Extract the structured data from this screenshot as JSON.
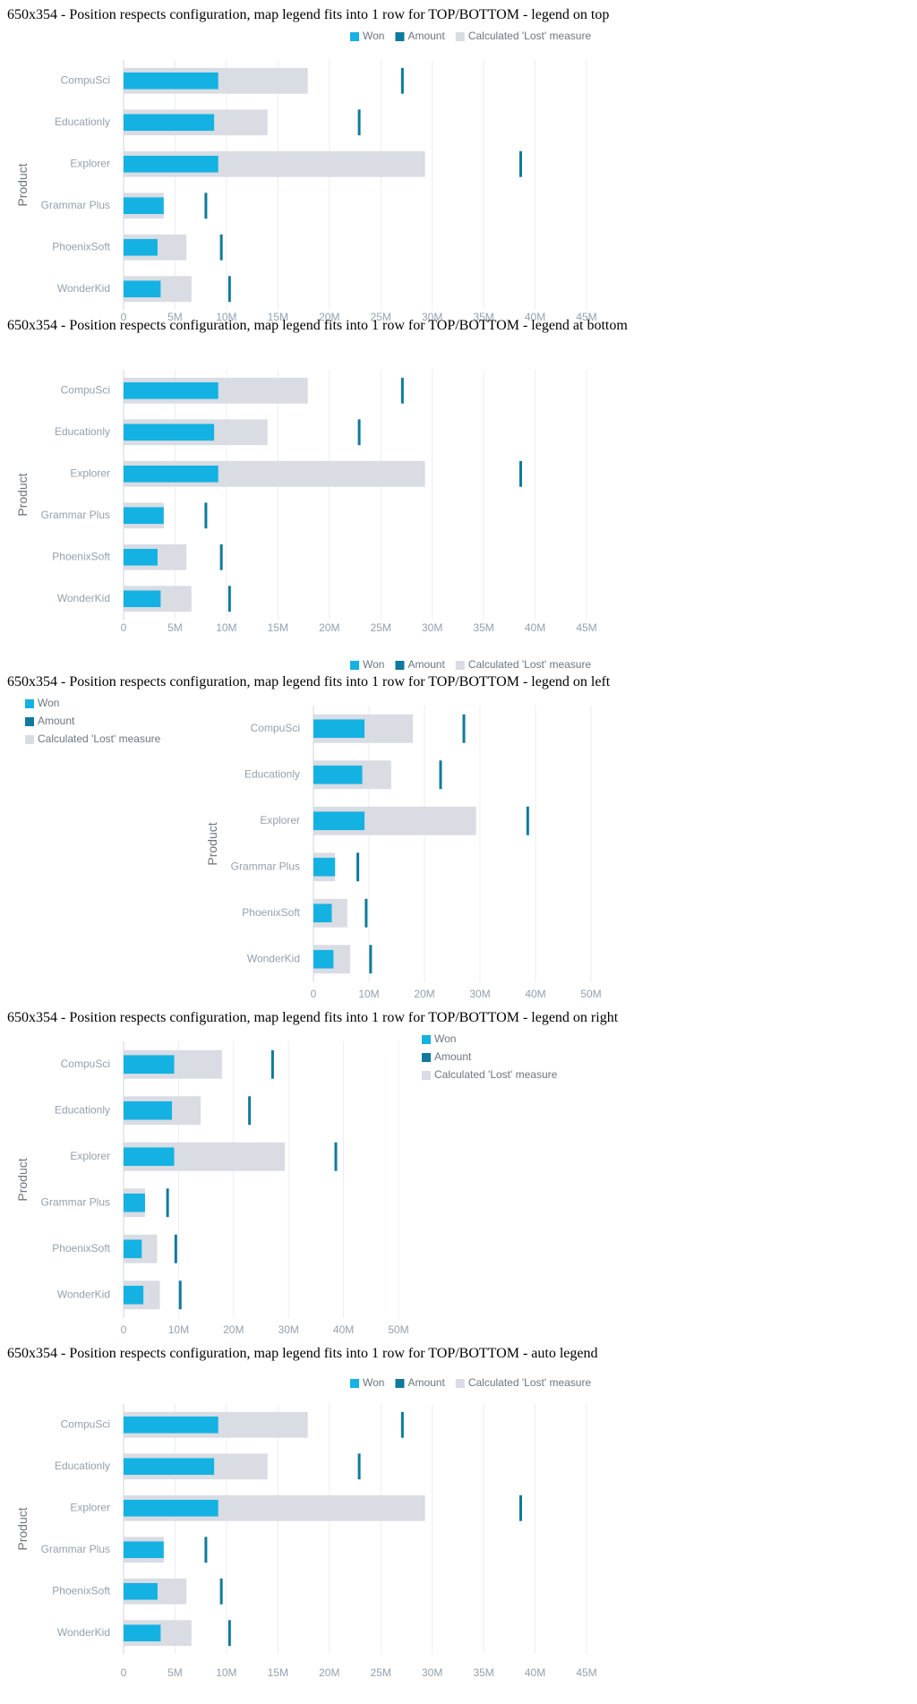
{
  "sections": [
    {
      "title": "650x354 - Position respects configuration, map legend fits into 1 row for TOP/BOTTOM - legend on top",
      "legend_position": "top"
    },
    {
      "title": "650x354 - Position respects configuration, map legend fits into 1 row for TOP/BOTTOM - legend at bottom",
      "legend_position": "bottom"
    },
    {
      "title": "650x354 - Position respects configuration, map legend fits into 1 row for TOP/BOTTOM - legend on left",
      "legend_position": "left"
    },
    {
      "title": "650x354 - Position respects configuration, map legend fits into 1 row for TOP/BOTTOM - legend on right",
      "legend_position": "right"
    },
    {
      "title": "650x354 - Position respects configuration, map legend fits into 1 row for TOP/BOTTOM - auto legend",
      "legend_position": "top"
    }
  ],
  "chart_data": {
    "type": "bar",
    "orientation": "horizontal",
    "categories": [
      "CompuSci",
      "Educationly",
      "Explorer",
      "Grammar Plus",
      "PhoenixSoft",
      "WonderKid"
    ],
    "ylabel": "Product",
    "xlabel": "",
    "series": [
      {
        "name": "Won",
        "color": "#14b2e2",
        "values": [
          9.2,
          8.8,
          9.2,
          3.9,
          3.3,
          3.6
        ]
      },
      {
        "name": "Calculated 'Lost' measure",
        "color": "#d9dce3",
        "values": [
          17.9,
          14.0,
          29.3,
          3.9,
          6.1,
          6.6
        ]
      },
      {
        "name": "Amount",
        "color": "#0f7a9b",
        "values": [
          27.1,
          22.9,
          38.6,
          8.0,
          9.5,
          10.3
        ]
      }
    ],
    "legend": [
      "Won",
      "Amount",
      "Calculated 'Lost' measure"
    ],
    "xlim_wide": [
      0,
      45
    ],
    "xticks_wide": [
      "0",
      "5M",
      "10M",
      "15M",
      "20M",
      "25M",
      "30M",
      "35M",
      "40M",
      "45M"
    ],
    "xlim_narrow": [
      0,
      50
    ],
    "xticks_narrow": [
      "0",
      "10M",
      "20M",
      "30M",
      "40M",
      "50M"
    ],
    "grid": true
  }
}
